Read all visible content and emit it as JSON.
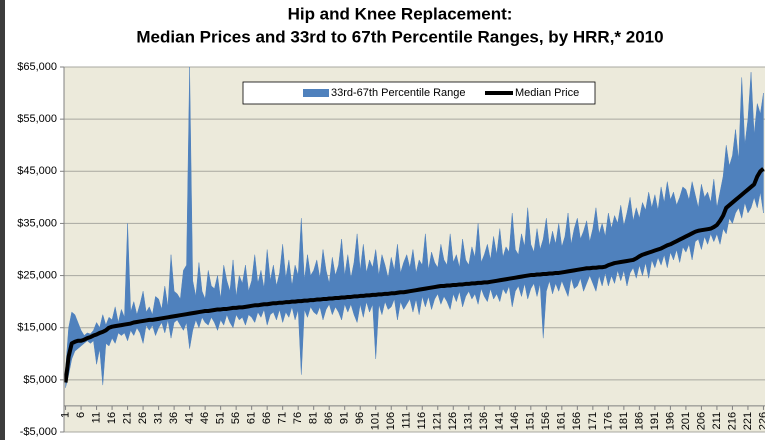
{
  "chart_data": {
    "type": "band-line",
    "title": "Hip and Knee Replacement:",
    "subtitle": "Median Prices and 33rd to 67th Percentile Ranges, by HRR,* 2010",
    "legend": "top",
    "grid": true,
    "xlim": [
      0.5,
      226.5
    ],
    "xticks": [
      1,
      6,
      11,
      16,
      21,
      26,
      31,
      36,
      41,
      46,
      51,
      56,
      61,
      66,
      71,
      76,
      81,
      86,
      91,
      96,
      101,
      106,
      111,
      116,
      121,
      126,
      131,
      136,
      141,
      146,
      151,
      156,
      161,
      166,
      171,
      176,
      181,
      186,
      191,
      196,
      201,
      206,
      211,
      216,
      221,
      226
    ],
    "ylim": [
      -5000,
      65000
    ],
    "yticks": [
      {
        "value": -5000,
        "label": "-$5,000"
      },
      {
        "value": 5000,
        "label": "$5,000"
      },
      {
        "value": 15000,
        "label": "$15,000"
      },
      {
        "value": 25000,
        "label": "$25,000"
      },
      {
        "value": 35000,
        "label": "$35,000"
      },
      {
        "value": 45000,
        "label": "$45,000"
      },
      {
        "value": 55000,
        "label": "$55,000"
      },
      {
        "value": 65000,
        "label": "$65,000"
      }
    ],
    "x": [
      1,
      2,
      3,
      4,
      5,
      6,
      7,
      8,
      9,
      10,
      11,
      12,
      13,
      14,
      15,
      16,
      17,
      18,
      19,
      20,
      21,
      22,
      23,
      24,
      25,
      26,
      27,
      28,
      29,
      30,
      31,
      32,
      33,
      34,
      35,
      36,
      37,
      38,
      39,
      40,
      41,
      42,
      43,
      44,
      45,
      46,
      47,
      48,
      49,
      50,
      51,
      52,
      53,
      54,
      55,
      56,
      57,
      58,
      59,
      60,
      61,
      62,
      63,
      64,
      65,
      66,
      67,
      68,
      69,
      70,
      71,
      72,
      73,
      74,
      75,
      76,
      77,
      78,
      79,
      80,
      81,
      82,
      83,
      84,
      85,
      86,
      87,
      88,
      89,
      90,
      91,
      92,
      93,
      94,
      95,
      96,
      97,
      98,
      99,
      100,
      101,
      102,
      103,
      104,
      105,
      106,
      107,
      108,
      109,
      110,
      111,
      112,
      113,
      114,
      115,
      116,
      117,
      118,
      119,
      120,
      121,
      122,
      123,
      124,
      125,
      126,
      127,
      128,
      129,
      130,
      131,
      132,
      133,
      134,
      135,
      136,
      137,
      138,
      139,
      140,
      141,
      142,
      143,
      144,
      145,
      146,
      147,
      148,
      149,
      150,
      151,
      152,
      153,
      154,
      155,
      156,
      157,
      158,
      159,
      160,
      161,
      162,
      163,
      164,
      165,
      166,
      167,
      168,
      169,
      170,
      171,
      172,
      173,
      174,
      175,
      176,
      177,
      178,
      179,
      180,
      181,
      182,
      183,
      184,
      185,
      186,
      187,
      188,
      189,
      190,
      191,
      192,
      193,
      194,
      195,
      196,
      197,
      198,
      199,
      200,
      201,
      202,
      203,
      204,
      205,
      206,
      207,
      208,
      209,
      210,
      211,
      212,
      213,
      214,
      215,
      216,
      217,
      218,
      219,
      220,
      221,
      222,
      223,
      224,
      225,
      226
    ],
    "series": [
      {
        "name": "33rd-67th Percentile Range",
        "color": "#4f81bd",
        "high": [
          7000,
          15000,
          18000,
          17500,
          16000,
          14500,
          13500,
          14000,
          13800,
          14500,
          16000,
          15000,
          17500,
          15500,
          17000,
          16500,
          19000,
          16000,
          18500,
          17000,
          35000,
          18000,
          20000,
          17500,
          19500,
          22000,
          18000,
          19000,
          17500,
          21000,
          20500,
          18500,
          23000,
          19000,
          29000,
          22000,
          21500,
          20500,
          26000,
          27000,
          65000,
          24000,
          21000,
          27500,
          22000,
          20500,
          26000,
          23000,
          22500,
          25000,
          20500,
          27000,
          24000,
          22000,
          28000,
          21000,
          25000,
          23500,
          27000,
          22000,
          24000,
          29000,
          23500,
          26000,
          22500,
          30000,
          24000,
          27000,
          23000,
          25500,
          31000,
          24500,
          28000,
          23000,
          27000,
          25000,
          36000,
          24000,
          29000,
          25000,
          26000,
          28000,
          24500,
          30000,
          26000,
          23500,
          28500,
          25000,
          27000,
          32000,
          25000,
          29000,
          24500,
          27500,
          33000,
          26000,
          31000,
          25500,
          28000,
          26500,
          30000,
          25000,
          29000,
          27000,
          24500,
          28500,
          26000,
          31000,
          25500,
          27500,
          29000,
          26500,
          30000,
          25500,
          28000,
          27000,
          33000,
          26000,
          29500,
          27500,
          26500,
          31000,
          28000,
          27000,
          33000,
          27500,
          29000,
          26500,
          32000,
          28000,
          27000,
          30500,
          28500,
          35000,
          27500,
          29000,
          31000,
          28000,
          32500,
          29000,
          34000,
          28500,
          30500,
          29500,
          37000,
          30000,
          29000,
          33000,
          30500,
          38000,
          31000,
          29500,
          34000,
          30000,
          32000,
          36000,
          30500,
          33500,
          31000,
          35000,
          30500,
          32500,
          37000,
          31000,
          34000,
          36000,
          32000,
          33500,
          35500,
          31500,
          34000,
          38000,
          33000,
          35000,
          32500,
          37000,
          34000,
          36500,
          35000,
          38500,
          34500,
          37000,
          40000,
          35500,
          38000,
          36000,
          39000,
          37500,
          41000,
          38000,
          40500,
          37500,
          42000,
          39000,
          43000,
          39500,
          41000,
          38500,
          40000,
          42000,
          41500,
          39500,
          43000,
          40500,
          38000,
          42500,
          40000,
          41000,
          39000,
          43500,
          38000,
          41000,
          44000,
          50000,
          46000,
          48000,
          53000,
          47000,
          63000,
          50000,
          55000,
          64000,
          52000,
          58000,
          56000,
          60000
        ],
        "low": [
          3500,
          6000,
          9000,
          10500,
          11000,
          11500,
          12000,
          12500,
          12000,
          12500,
          8000,
          11000,
          4000,
          12000,
          11500,
          13000,
          12000,
          14000,
          13500,
          14000,
          12500,
          14500,
          13500,
          15000,
          14000,
          12000,
          15500,
          14500,
          15500,
          13500,
          15000,
          16000,
          14000,
          16500,
          13000,
          16000,
          16500,
          15500,
          14500,
          16000,
          11000,
          14500,
          16500,
          15000,
          17000,
          16000,
          15500,
          17000,
          16000,
          14500,
          16500,
          15500,
          17500,
          16000,
          15000,
          17500,
          16500,
          17000,
          15500,
          17500,
          17000,
          16000,
          18000,
          17000,
          18500,
          15500,
          17500,
          18000,
          16500,
          18500,
          16000,
          18000,
          17000,
          19000,
          16500,
          18500,
          6000,
          18500,
          17000,
          19000,
          18000,
          17500,
          19000,
          16500,
          18500,
          19500,
          17500,
          19000,
          18000,
          16500,
          19500,
          18000,
          19500,
          17500,
          16000,
          19500,
          17000,
          20000,
          18000,
          19500,
          9000,
          19500,
          17500,
          20000,
          18500,
          19000,
          20500,
          16500,
          20000,
          18500,
          19500,
          20500,
          18000,
          20500,
          17500,
          21000,
          19000,
          21000,
          18500,
          20500,
          21500,
          19500,
          21000,
          20000,
          18500,
          21500,
          20000,
          22000,
          19000,
          21000,
          22000,
          20500,
          21500,
          19500,
          22500,
          21000,
          20000,
          22500,
          20500,
          21500,
          20000,
          22500,
          21500,
          23000,
          19000,
          22000,
          23000,
          21000,
          23500,
          20500,
          22500,
          23500,
          21000,
          23500,
          13000,
          22000,
          24000,
          21500,
          23500,
          22000,
          24000,
          22500,
          21000,
          24500,
          22500,
          23000,
          24500,
          22000,
          23500,
          25000,
          23500,
          22000,
          25000,
          23000,
          25500,
          23000,
          25000,
          23500,
          26000,
          24000,
          26000,
          23000,
          25500,
          26500,
          24500,
          27000,
          25000,
          27500,
          24500,
          28000,
          26500,
          28500,
          27000,
          29000,
          26500,
          29500,
          28000,
          30000,
          27500,
          30500,
          29500,
          31000,
          28000,
          31500,
          32000,
          30000,
          32500,
          31000,
          33000,
          31500,
          33000,
          31000,
          34000,
          33000,
          36000,
          35000,
          37000,
          38000,
          36000,
          39000,
          37000,
          38000,
          40000,
          38000,
          41000,
          37000
        ]
      },
      {
        "name": "Median Price",
        "color": "#000000",
        "values": [
          4500,
          9500,
          12000,
          12300,
          12500,
          12500,
          12700,
          13000,
          13200,
          13500,
          13700,
          14000,
          14200,
          14500,
          15000,
          15200,
          15300,
          15400,
          15500,
          15600,
          15700,
          15800,
          16000,
          16100,
          16200,
          16300,
          16400,
          16500,
          16500,
          16600,
          16700,
          16800,
          16900,
          17000,
          17100,
          17200,
          17300,
          17400,
          17500,
          17600,
          17700,
          17800,
          17900,
          18000,
          18100,
          18200,
          18200,
          18300,
          18400,
          18500,
          18500,
          18600,
          18600,
          18700,
          18800,
          18800,
          18900,
          18900,
          19000,
          19100,
          19200,
          19300,
          19300,
          19400,
          19500,
          19500,
          19600,
          19700,
          19700,
          19800,
          19800,
          19900,
          19900,
          20000,
          20000,
          20100,
          20100,
          20200,
          20200,
          20300,
          20300,
          20400,
          20400,
          20500,
          20500,
          20600,
          20600,
          20700,
          20700,
          20800,
          20800,
          20900,
          20900,
          21000,
          21000,
          21100,
          21100,
          21200,
          21200,
          21300,
          21300,
          21400,
          21400,
          21500,
          21500,
          21600,
          21600,
          21700,
          21800,
          21800,
          21900,
          22000,
          22100,
          22200,
          22300,
          22400,
          22500,
          22600,
          22700,
          22800,
          22900,
          23000,
          23000,
          23100,
          23100,
          23200,
          23200,
          23300,
          23300,
          23400,
          23400,
          23500,
          23500,
          23600,
          23600,
          23700,
          23700,
          23800,
          23900,
          24000,
          24100,
          24200,
          24300,
          24400,
          24500,
          24600,
          24700,
          24800,
          24900,
          25000,
          25100,
          25100,
          25200,
          25200,
          25300,
          25300,
          25400,
          25400,
          25500,
          25500,
          25600,
          25700,
          25800,
          25900,
          26000,
          26100,
          26200,
          26300,
          26400,
          26400,
          26500,
          26500,
          26600,
          26600,
          26700,
          27000,
          27200,
          27400,
          27500,
          27600,
          27700,
          27800,
          27900,
          28000,
          28300,
          28700,
          29000,
          29200,
          29400,
          29600,
          29800,
          30000,
          30200,
          30500,
          30800,
          31000,
          31300,
          31600,
          31900,
          32200,
          32500,
          32800,
          33100,
          33400,
          33600,
          33700,
          33800,
          33900,
          34000,
          34300,
          34700,
          35500,
          36500,
          38000,
          38500,
          39000,
          39500,
          40000,
          40500,
          41000,
          41500,
          42000,
          42500,
          44000,
          45000,
          45500
        ]
      }
    ]
  }
}
